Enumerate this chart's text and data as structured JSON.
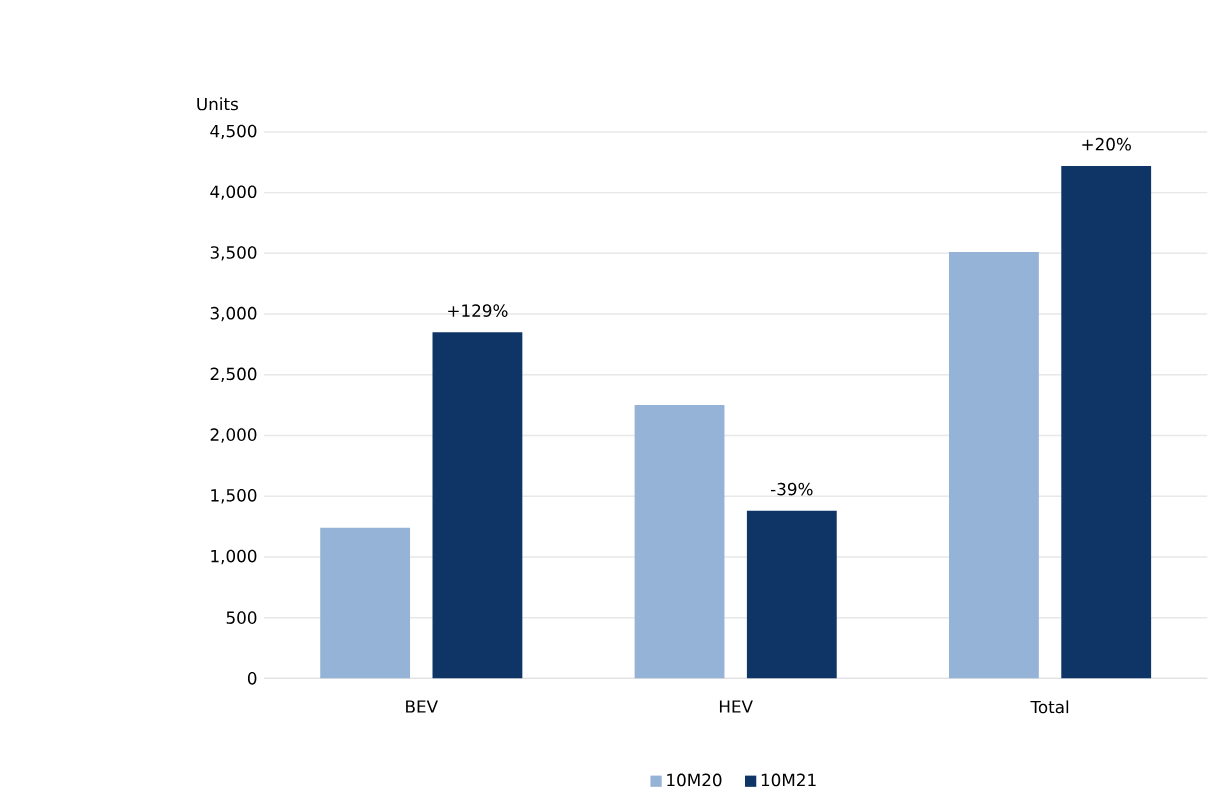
{
  "chart_data": {
    "type": "bar",
    "ylabel": "Units",
    "categories": [
      "BEV",
      "HEV",
      "Total"
    ],
    "series": [
      {
        "name": "10M20",
        "color": "#95b3d7",
        "values": [
          1240,
          2250,
          3510
        ]
      },
      {
        "name": "10M21",
        "color": "#0f3466",
        "values": [
          2850,
          1380,
          4220
        ]
      }
    ],
    "ylim": [
      0,
      4500
    ],
    "yticks": [
      0,
      500,
      {
        "value": 1000,
        "label": "1,000"
      },
      {
        "value": 1500,
        "label": "1,500"
      },
      {
        "value": 2000,
        "label": "2,000"
      },
      {
        "value": 2500,
        "label": "2,500"
      },
      {
        "value": 3000,
        "label": "3,000"
      },
      {
        "value": 3500,
        "label": "3,500"
      },
      {
        "value": 4000,
        "label": "4,000"
      },
      {
        "value": 4500,
        "label": "4,500"
      }
    ],
    "annotations": [
      "+129%",
      "-39%",
      "+20%"
    ],
    "grid": "y",
    "legend": "bottom"
  }
}
